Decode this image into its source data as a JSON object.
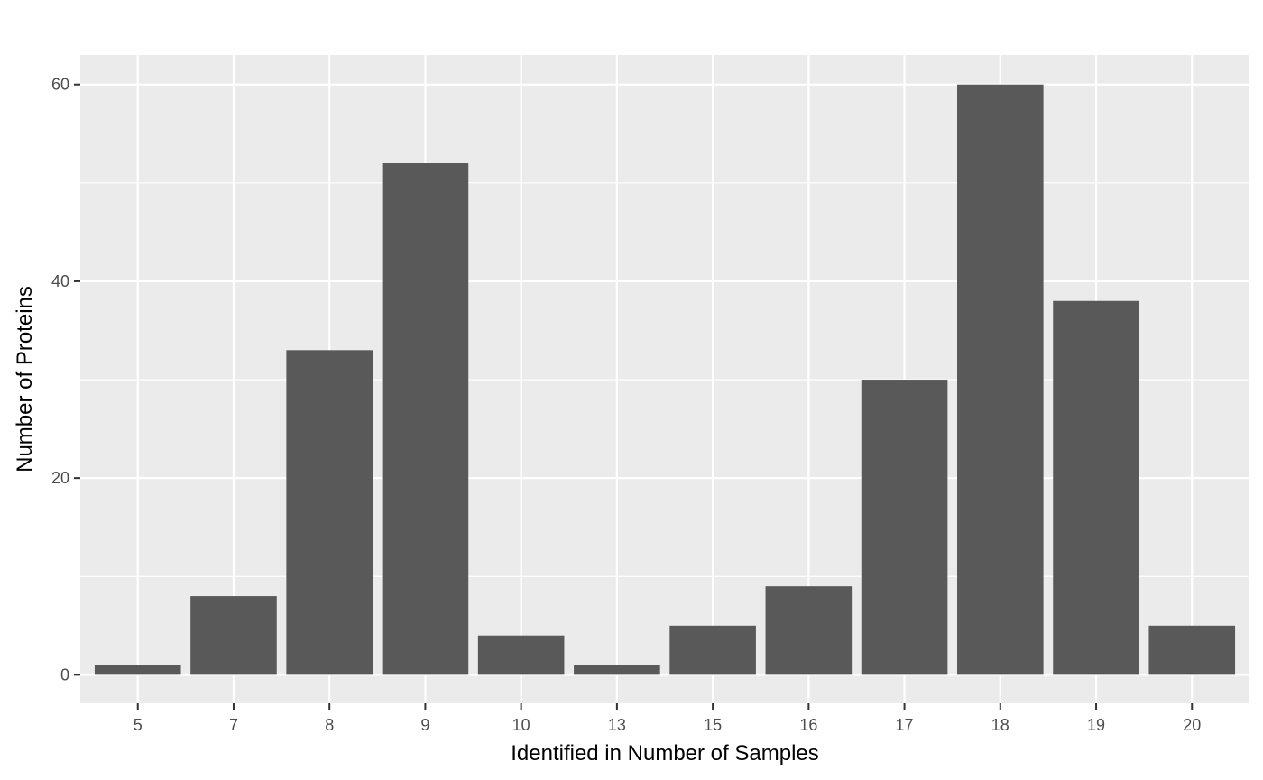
{
  "chart_data": {
    "type": "bar",
    "title": "",
    "xlabel": "Identified in Number of Samples",
    "ylabel": "Number of Proteins",
    "categories": [
      "5",
      "7",
      "8",
      "9",
      "10",
      "13",
      "15",
      "16",
      "17",
      "18",
      "19",
      "20"
    ],
    "values": [
      1,
      8,
      33,
      52,
      4,
      1,
      5,
      9,
      30,
      60,
      38,
      5
    ],
    "ylim": [
      -2.9,
      63.0
    ],
    "yticks": [
      0,
      20,
      40,
      60
    ],
    "grid": true,
    "legend": "none",
    "colors": {
      "bar": "#595959",
      "panel": "#ebebeb",
      "grid_major": "#ffffff",
      "grid_minor": "#f5f5f5",
      "tick": "#333333"
    }
  }
}
